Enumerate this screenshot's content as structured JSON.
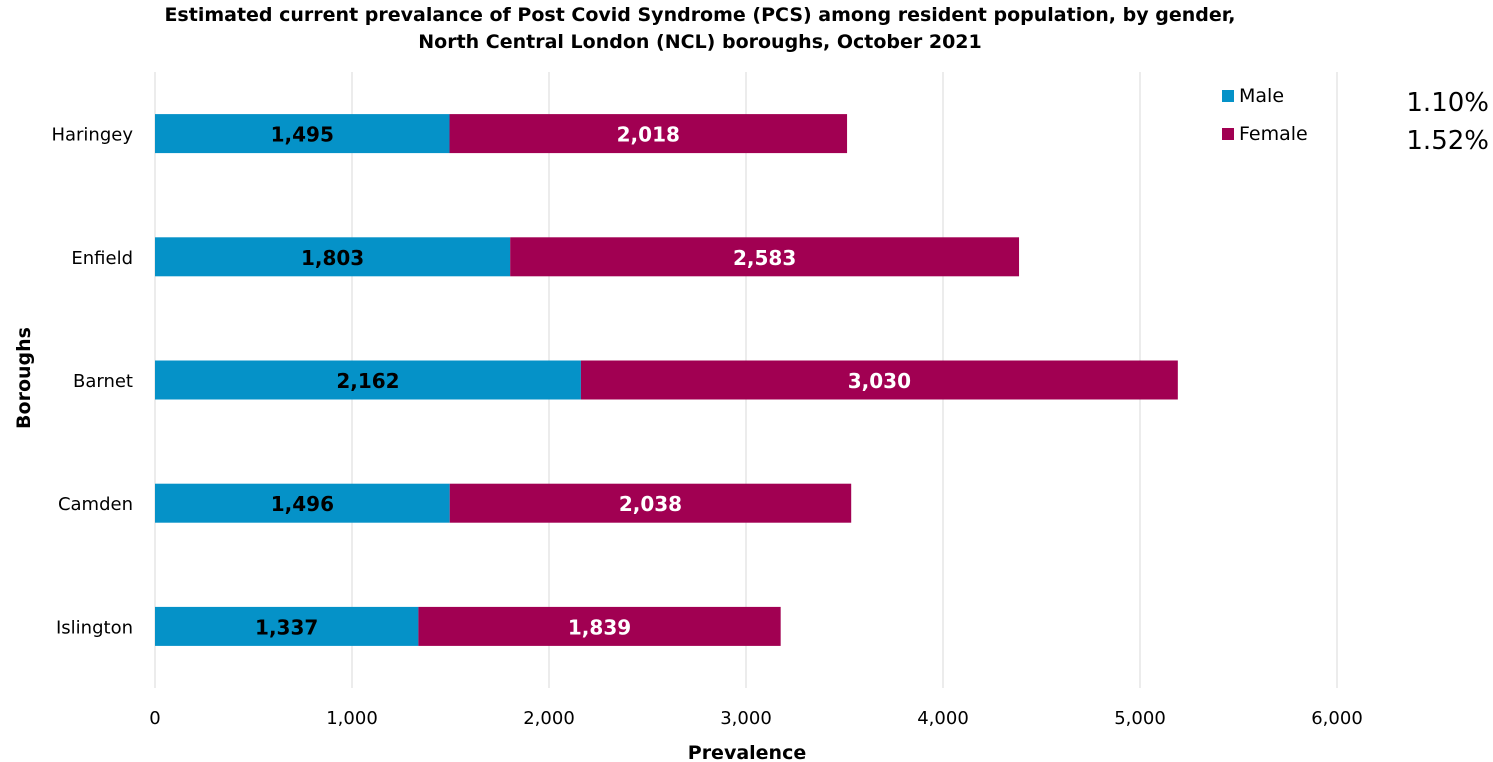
{
  "chart_data": {
    "type": "bar",
    "orientation": "horizontal",
    "stacked": true,
    "title": "Estimated current prevalance of Post Covid Syndrome (PCS) among resident population, by gender, North Central London (NCL) boroughs, October 2021",
    "xlabel": "Prevalence",
    "ylabel": "Boroughs",
    "xlim": [
      0,
      6000
    ],
    "xticks": [
      0,
      1000,
      2000,
      3000,
      4000,
      5000,
      6000
    ],
    "xtick_labels": [
      "0",
      "1,000",
      "2,000",
      "3,000",
      "4,000",
      "5,000",
      "6,000"
    ],
    "grid": true,
    "legend_position": "top-right",
    "categories": [
      "Haringey",
      "Enfield",
      "Barnet",
      "Camden",
      "Islington"
    ],
    "series": [
      {
        "name": "Male",
        "color": "#0592c8",
        "label_color": "#000000",
        "values": [
          1495,
          1803,
          2162,
          1496,
          1337
        ],
        "labels": [
          "1,495",
          "1,803",
          "2,162",
          "1,496",
          "1,337"
        ]
      },
      {
        "name": "Female",
        "color": "#a10052",
        "label_color": "#ffffff",
        "values": [
          2018,
          2583,
          3030,
          2038,
          1839
        ],
        "labels": [
          "2,018",
          "2,583",
          "3,030",
          "2,038",
          "1,839"
        ]
      }
    ],
    "annotations": [
      "1.10%",
      "1.52%"
    ]
  }
}
